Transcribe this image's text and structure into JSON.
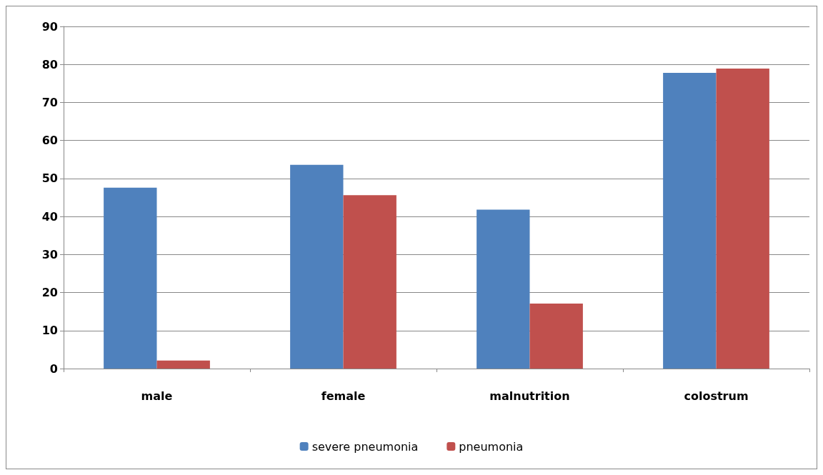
{
  "chart_data": {
    "type": "bar",
    "categories": [
      "male",
      "female",
      "malnutrition",
      "colostrum"
    ],
    "series": [
      {
        "name": "severe pneumonia",
        "color": "#4f81bd",
        "values": [
          47.6,
          53.6,
          41.8,
          77.8
        ]
      },
      {
        "name": "pneumonia",
        "color": "#c0504d",
        "values": [
          2.1,
          45.6,
          17.1,
          78.9
        ]
      }
    ],
    "ylim": [
      0,
      90
    ],
    "yticks": [
      0,
      10,
      20,
      30,
      40,
      50,
      60,
      70,
      80,
      90
    ],
    "grid": "y",
    "legend": "bottom"
  }
}
